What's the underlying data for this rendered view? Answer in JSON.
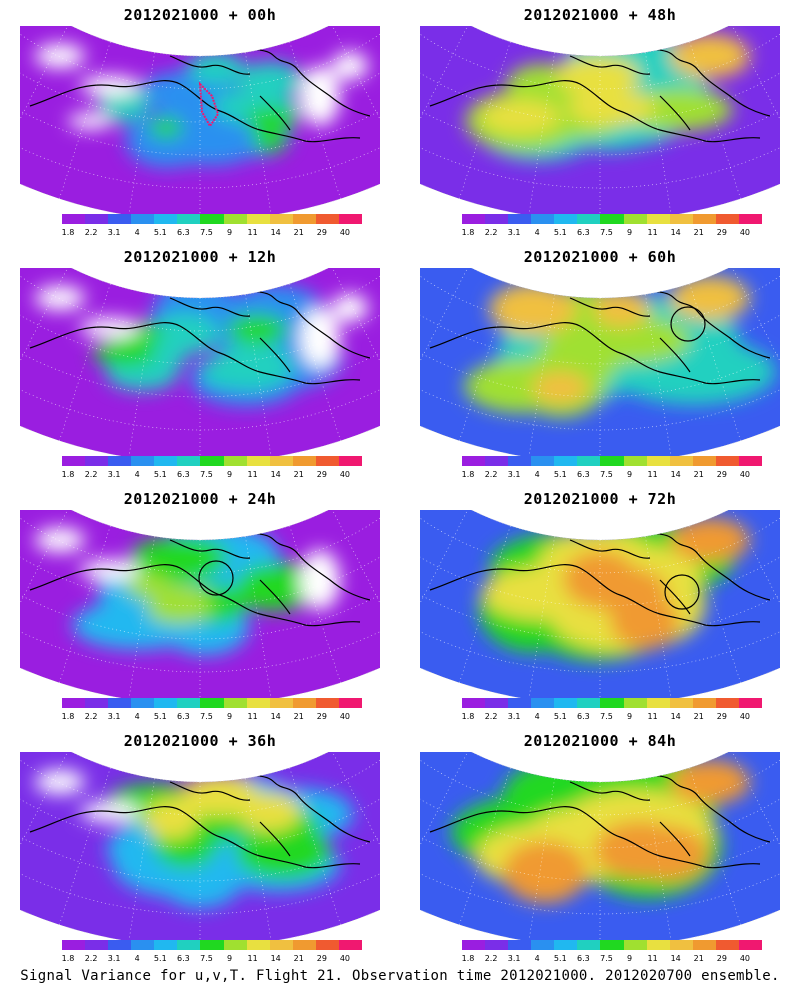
{
  "colors": {
    "scale": [
      "#9a1ee0",
      "#7a2ee8",
      "#3a5cf0",
      "#2a90f0",
      "#20b8f0",
      "#20d0c0",
      "#20d820",
      "#a0e030",
      "#e8e040",
      "#f0c040",
      "#f09a30",
      "#f05a30",
      "#f01870"
    ],
    "land": "#f6f6f6",
    "coast": "#000000"
  },
  "colorbar_labels": [
    "1.8",
    "2.2",
    "3.1",
    "4",
    "5.1",
    "6.3",
    "7.5",
    "9",
    "11",
    "14",
    "21",
    "29",
    "40"
  ],
  "panels": [
    {
      "title": "2012021000 + 00h",
      "level": 0
    },
    {
      "title": "2012021000 + 48h",
      "level": 4
    },
    {
      "title": "2012021000 + 12h",
      "level": 1
    },
    {
      "title": "2012021000 + 60h",
      "level": 5
    },
    {
      "title": "2012021000 + 24h",
      "level": 2
    },
    {
      "title": "2012021000 + 72h",
      "level": 6
    },
    {
      "title": "2012021000 + 36h",
      "level": 3
    },
    {
      "title": "2012021000 + 84h",
      "level": 7
    }
  ],
  "caption": "Signal Variance for u,v,T. Flight 21. Observation time 2012021000. 2012020700 ensemble.",
  "icons": [
    "observation-circle-icon"
  ]
}
